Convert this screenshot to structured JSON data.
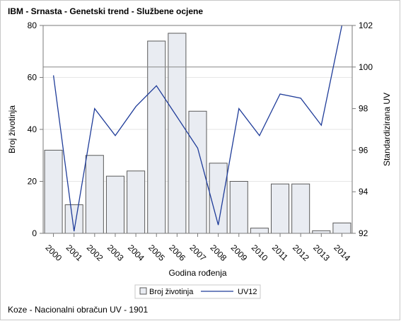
{
  "title": "IBM - Srnasta - Genetski trend - Službene ocjene",
  "footnote": "Koze - Nacionalni obračun UV - 1901",
  "chart_data": {
    "type": "bar",
    "categories": [
      "2000",
      "2001",
      "2002",
      "2003",
      "2004",
      "2005",
      "2006",
      "2007",
      "2008",
      "2009",
      "2010",
      "2011",
      "2012",
      "2013",
      "2014"
    ],
    "series": [
      {
        "name": "Broj životinja",
        "type": "bar",
        "axis": "left",
        "values": [
          32,
          11,
          30,
          22,
          24,
          74,
          77,
          47,
          27,
          20,
          2,
          19,
          19,
          1,
          4
        ],
        "color": "#e9ecf2",
        "stroke": "#5a5a5a"
      },
      {
        "name": "UV12",
        "type": "line",
        "axis": "right",
        "values": [
          99.6,
          92.1,
          98.0,
          96.7,
          98.1,
          99.1,
          97.6,
          96.1,
          92.4,
          98.0,
          96.7,
          98.7,
          98.5,
          97.2,
          102.0
        ],
        "color": "#1f3c99"
      }
    ],
    "xlabel": "Godina rođenja",
    "ylabel": "Broj životinja",
    "y2label": "Standardizirana UV",
    "ylim": [
      0,
      80
    ],
    "y2lim": [
      92,
      102
    ],
    "yticks": [
      0,
      20,
      40,
      60,
      80
    ],
    "y2ticks": [
      92,
      94,
      96,
      98,
      100,
      102
    ],
    "reference_line": {
      "axis": "right",
      "value": 100
    },
    "grid": true,
    "legend_position": "bottom"
  }
}
